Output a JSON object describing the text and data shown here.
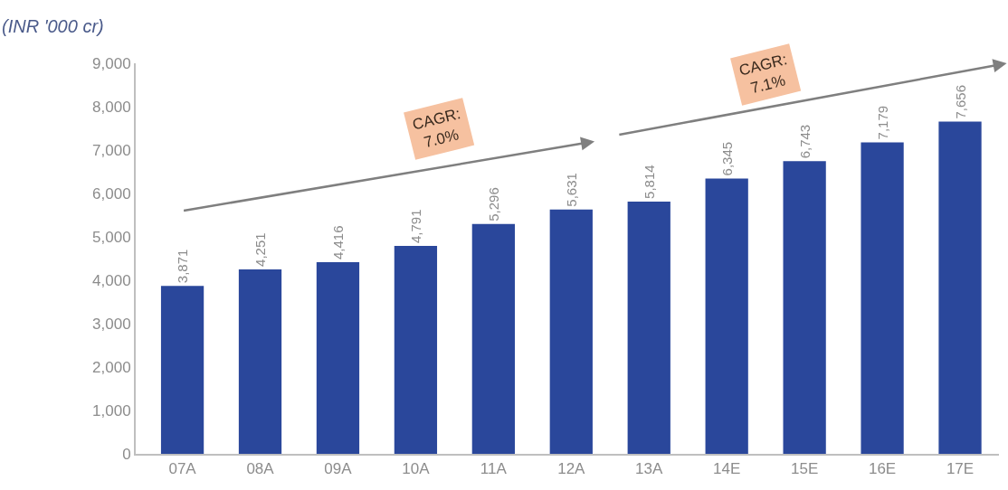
{
  "chart_data": {
    "type": "bar",
    "title": "(INR '000 cr)",
    "categories": [
      "07A",
      "08A",
      "09A",
      "10A",
      "11A",
      "12A",
      "13A",
      "14E",
      "15E",
      "16E",
      "17E"
    ],
    "values": [
      3871,
      4251,
      4416,
      4791,
      5296,
      5631,
      5814,
      6345,
      6743,
      7179,
      7656
    ],
    "value_labels": [
      "3,871",
      "4,251",
      "4,416",
      "4,791",
      "5,296",
      "5,631",
      "5,814",
      "6,345",
      "6,743",
      "7,179",
      "7,656"
    ],
    "color": "#2a479b",
    "ylim": [
      0,
      9000
    ],
    "yticks": [
      0,
      {
        "value": 1000,
        "label": "1,000"
      },
      {
        "value": 2000,
        "label": "2,000"
      },
      {
        "value": 3000,
        "label": "3,000"
      },
      {
        "value": 4000,
        "label": "4,000"
      },
      {
        "value": 5000,
        "label": "5,000"
      },
      {
        "value": 6000,
        "label": "6,000"
      },
      {
        "value": 7000,
        "label": "7,000"
      },
      {
        "value": 8000,
        "label": "8,000"
      },
      {
        "value": 9000,
        "label": "9,000"
      }
    ],
    "annotations": [
      "CAGR:\n7.0%",
      "CAGR:\n7.1%"
    ],
    "legend": false
  }
}
